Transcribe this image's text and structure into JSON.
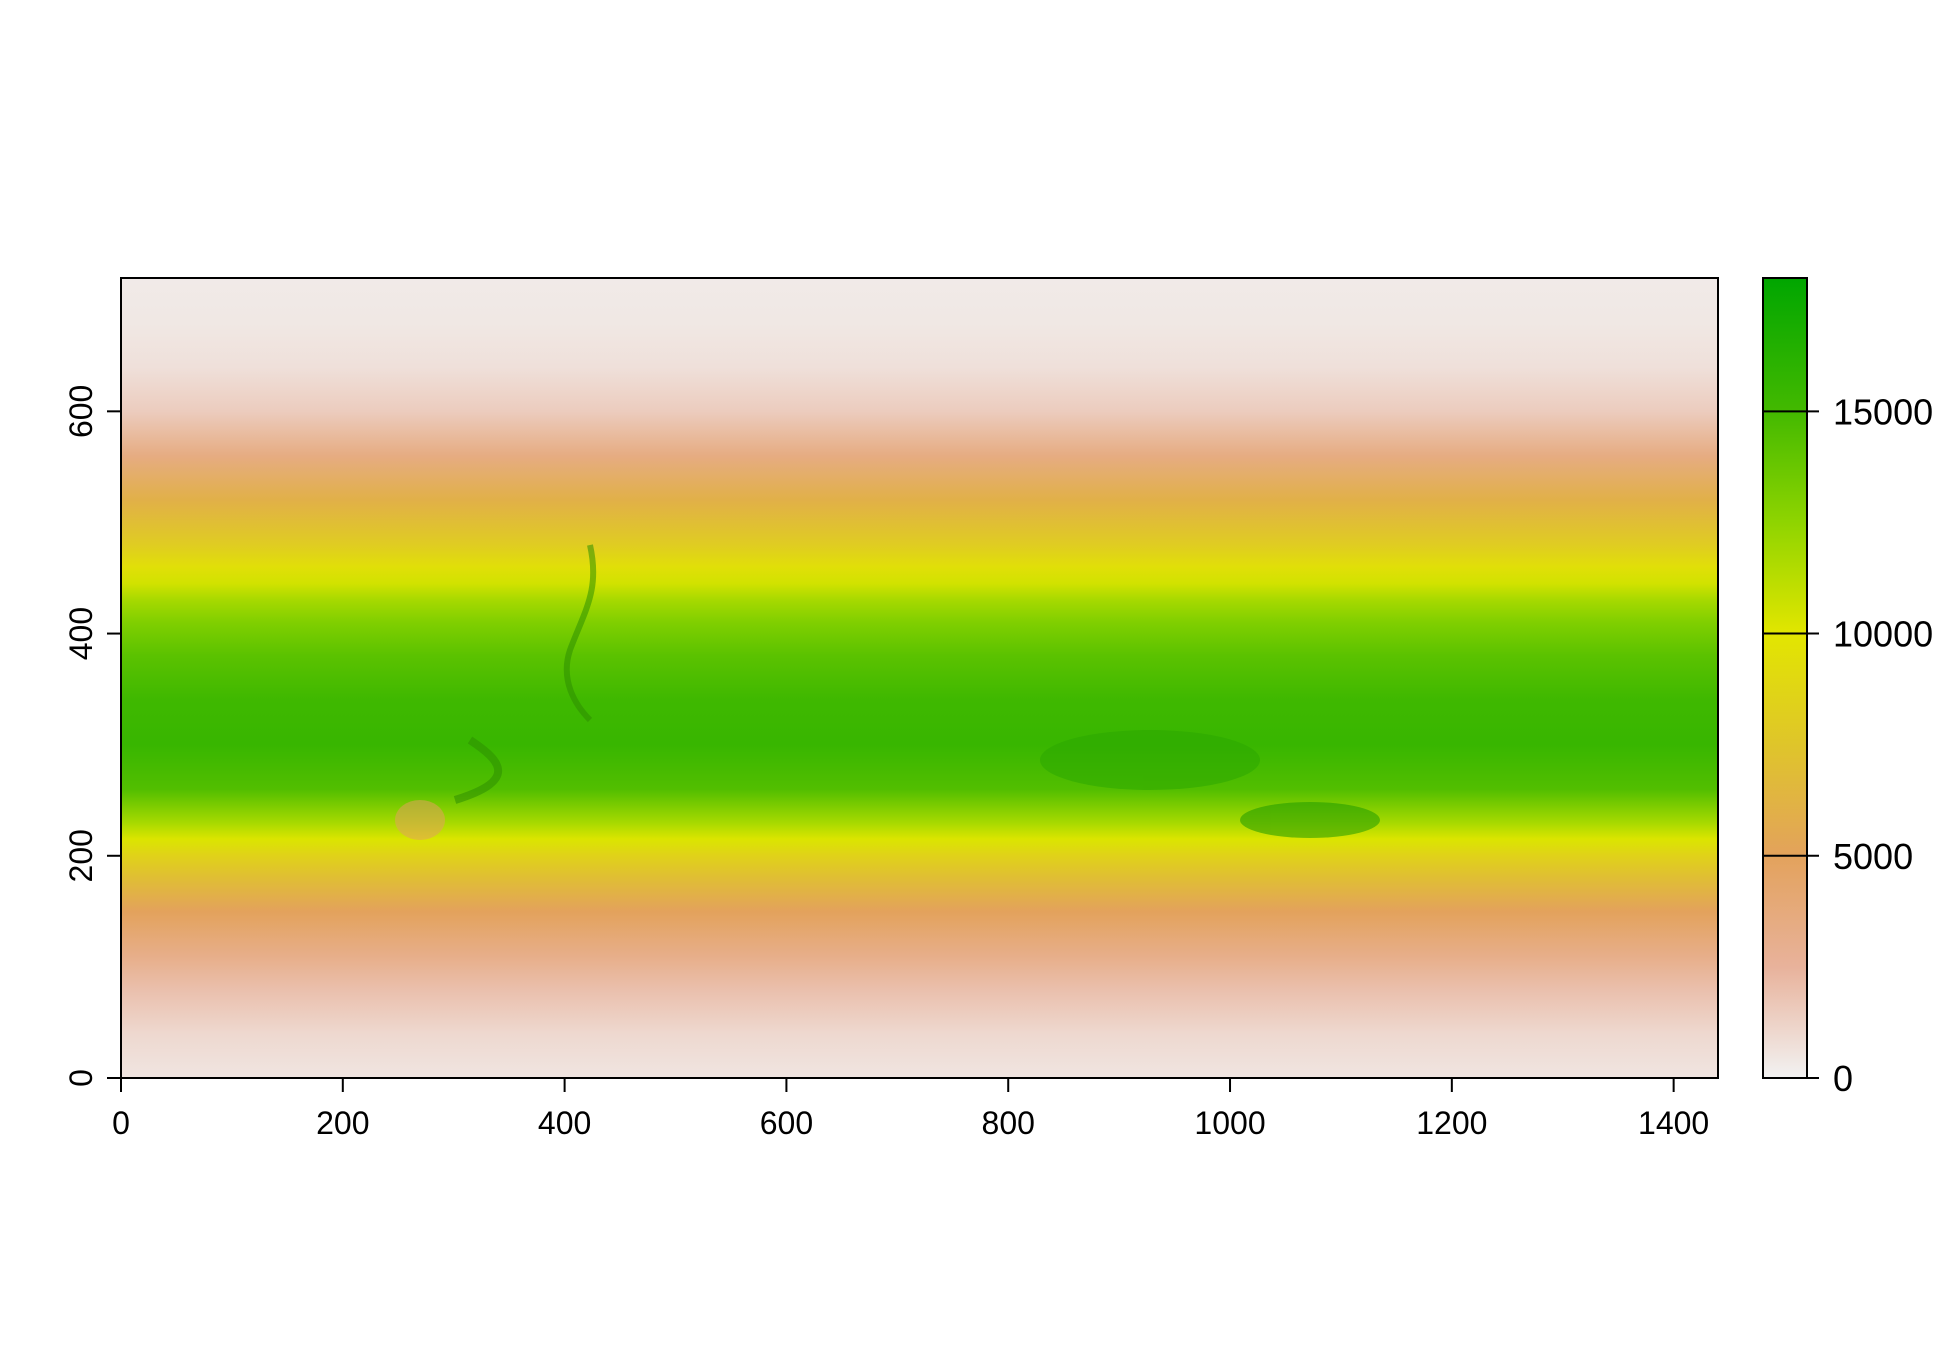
{
  "chart_data": {
    "type": "heatmap",
    "title": "",
    "xlabel": "",
    "ylabel": "",
    "xlim": [
      0,
      1440
    ],
    "ylim": [
      0,
      720
    ],
    "x_ticks": [
      "0",
      "200",
      "400",
      "600",
      "800",
      "1000",
      "1200",
      "1400"
    ],
    "x_tick_values": [
      0,
      200,
      400,
      600,
      800,
      1000,
      1200,
      1400
    ],
    "y_ticks": [
      "0",
      "200",
      "400",
      "600"
    ],
    "y_tick_values": [
      0,
      200,
      400,
      600
    ],
    "legend": {
      "min": 0,
      "max": 18000,
      "tick_values": [
        0,
        5000,
        10000,
        15000
      ],
      "tick_labels": [
        "0",
        "5000",
        "10000",
        "15000"
      ],
      "placement": "right",
      "color_stops": [
        {
          "value": 0,
          "color": "#F2F2F2"
        },
        {
          "value": 2500,
          "color": "#E8B29B"
        },
        {
          "value": 5000,
          "color": "#E3A25C"
        },
        {
          "value": 7500,
          "color": "#DFC52A"
        },
        {
          "value": 10000,
          "color": "#E2E600"
        },
        {
          "value": 12500,
          "color": "#8FD400"
        },
        {
          "value": 15000,
          "color": "#43B900"
        },
        {
          "value": 18000,
          "color": "#00A600"
        }
      ]
    },
    "row_profile": {
      "y": [
        0,
        40,
        80,
        110,
        150,
        180,
        200,
        215,
        230,
        260,
        300,
        340,
        380,
        410,
        430,
        445,
        460,
        480,
        520,
        560,
        600,
        640,
        680,
        720
      ],
      "values": [
        500,
        1000,
        2000,
        3200,
        5000,
        7000,
        8500,
        10200,
        11800,
        14500,
        15500,
        15200,
        14200,
        13000,
        11800,
        10500,
        9500,
        8000,
        6000,
        3500,
        1500,
        700,
        400,
        300
      ]
    },
    "grid": false
  }
}
